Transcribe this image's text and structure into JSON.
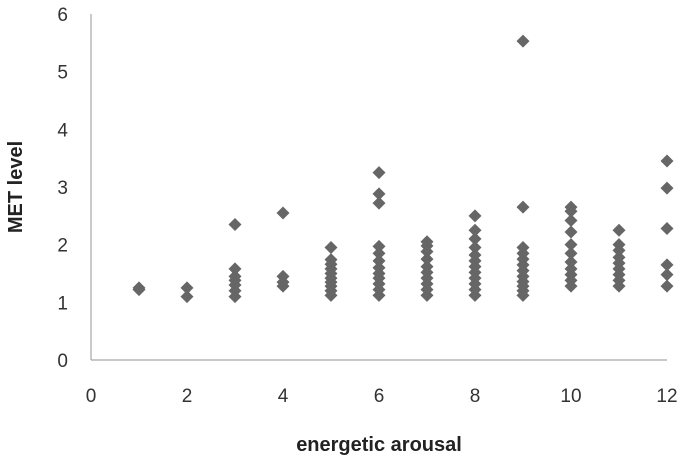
{
  "chart_data": {
    "type": "scatter",
    "title": "",
    "xlabel": "energetic arousal",
    "ylabel": "MET level",
    "xlim": [
      0,
      12
    ],
    "ylim": [
      0,
      6
    ],
    "xticks": [
      "0",
      "2",
      "4",
      "6",
      "8",
      "10",
      "12"
    ],
    "yticks": [
      "0",
      "1",
      "2",
      "3",
      "4",
      "5",
      "6"
    ],
    "grid": false,
    "legend": "none",
    "marker": "diamond",
    "marker_color": "#666666",
    "axis_color": "#a6a6a6",
    "series": [
      {
        "points": [
          [
            1,
            1.22
          ],
          [
            1,
            1.25
          ],
          [
            2,
            1.1
          ],
          [
            2,
            1.25
          ],
          [
            3,
            1.1
          ],
          [
            3,
            1.2
          ],
          [
            3,
            1.3
          ],
          [
            3,
            1.38
          ],
          [
            3,
            1.45
          ],
          [
            3,
            1.58
          ],
          [
            3,
            2.35
          ],
          [
            4,
            1.28
          ],
          [
            4,
            1.35
          ],
          [
            4,
            1.45
          ],
          [
            4,
            2.55
          ],
          [
            5,
            1.12
          ],
          [
            5,
            1.2
          ],
          [
            5,
            1.28
          ],
          [
            5,
            1.35
          ],
          [
            5,
            1.42
          ],
          [
            5,
            1.5
          ],
          [
            5,
            1.58
          ],
          [
            5,
            1.66
          ],
          [
            5,
            1.74
          ],
          [
            5,
            1.95
          ],
          [
            6,
            1.12
          ],
          [
            6,
            1.22
          ],
          [
            6,
            1.32
          ],
          [
            6,
            1.42
          ],
          [
            6,
            1.5
          ],
          [
            6,
            1.6
          ],
          [
            6,
            1.72
          ],
          [
            6,
            1.85
          ],
          [
            6,
            1.97
          ],
          [
            6,
            2.72
          ],
          [
            6,
            2.88
          ],
          [
            6,
            3.25
          ],
          [
            7,
            1.12
          ],
          [
            7,
            1.22
          ],
          [
            7,
            1.32
          ],
          [
            7,
            1.42
          ],
          [
            7,
            1.52
          ],
          [
            7,
            1.62
          ],
          [
            7,
            1.75
          ],
          [
            7,
            1.88
          ],
          [
            7,
            1.98
          ],
          [
            7,
            2.05
          ],
          [
            8,
            1.12
          ],
          [
            8,
            1.22
          ],
          [
            8,
            1.32
          ],
          [
            8,
            1.42
          ],
          [
            8,
            1.52
          ],
          [
            8,
            1.62
          ],
          [
            8,
            1.72
          ],
          [
            8,
            1.82
          ],
          [
            8,
            1.95
          ],
          [
            8,
            2.1
          ],
          [
            8,
            2.25
          ],
          [
            8,
            2.5
          ],
          [
            9,
            1.12
          ],
          [
            9,
            1.2
          ],
          [
            9,
            1.28
          ],
          [
            9,
            1.36
          ],
          [
            9,
            1.45
          ],
          [
            9,
            1.55
          ],
          [
            9,
            1.65
          ],
          [
            9,
            1.75
          ],
          [
            9,
            1.85
          ],
          [
            9,
            1.95
          ],
          [
            9,
            2.65
          ],
          [
            9,
            5.53
          ],
          [
            10,
            1.28
          ],
          [
            10,
            1.38
          ],
          [
            10,
            1.48
          ],
          [
            10,
            1.58
          ],
          [
            10,
            1.7
          ],
          [
            10,
            1.85
          ],
          [
            10,
            2.0
          ],
          [
            10,
            2.22
          ],
          [
            10,
            2.42
          ],
          [
            10,
            2.58
          ],
          [
            10,
            2.65
          ],
          [
            11,
            1.28
          ],
          [
            11,
            1.38
          ],
          [
            11,
            1.48
          ],
          [
            11,
            1.58
          ],
          [
            11,
            1.68
          ],
          [
            11,
            1.78
          ],
          [
            11,
            1.9
          ],
          [
            11,
            2.0
          ],
          [
            11,
            2.25
          ],
          [
            12,
            1.28
          ],
          [
            12,
            1.48
          ],
          [
            12,
            1.65
          ],
          [
            12,
            2.28
          ],
          [
            12,
            2.98
          ],
          [
            12,
            3.45
          ]
        ]
      }
    ]
  }
}
